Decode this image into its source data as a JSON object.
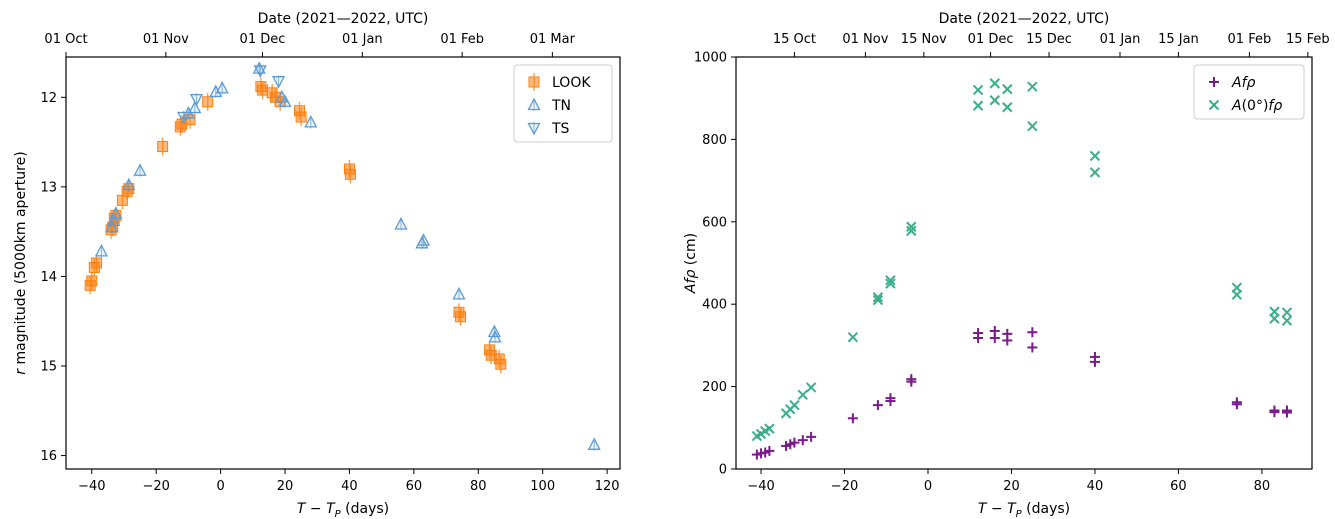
{
  "chart_data": [
    {
      "type": "scatter",
      "xlabel": "T − T_P (days)",
      "ylabel": "r magnitude (5000km aperture)",
      "top_axis_label": "Date (2021—2022, UTC)",
      "xlim": [
        -48,
        124
      ],
      "ylim": [
        16.15,
        11.55
      ],
      "y_inverted": true,
      "x_ticks": [
        -40,
        -20,
        0,
        20,
        40,
        60,
        80,
        100,
        120
      ],
      "y_ticks": [
        12,
        13,
        14,
        15,
        16
      ],
      "top_ticks": [
        {
          "label": "01 Oct",
          "x": -48
        },
        {
          "label": "01 Nov",
          "x": -17
        },
        {
          "label": "01 Dec",
          "x": 13
        },
        {
          "label": "01 Jan",
          "x": 44
        },
        {
          "label": "01 Feb",
          "x": 75
        },
        {
          "label": "01 Mar",
          "x": 103
        }
      ],
      "legend_position": "top-right",
      "series": [
        {
          "name": "LOOK",
          "marker": "square",
          "color": "#ff7f0e",
          "points": [
            {
              "x": -40.5,
              "y": 14.1
            },
            {
              "x": -40.0,
              "y": 14.05
            },
            {
              "x": -39.2,
              "y": 13.9
            },
            {
              "x": -38.5,
              "y": 13.85
            },
            {
              "x": -34.0,
              "y": 13.48
            },
            {
              "x": -33.5,
              "y": 13.45
            },
            {
              "x": -33.0,
              "y": 13.35
            },
            {
              "x": -32.5,
              "y": 13.32
            },
            {
              "x": -30.5,
              "y": 13.15
            },
            {
              "x": -29.0,
              "y": 13.05
            },
            {
              "x": -28.5,
              "y": 13.02
            },
            {
              "x": -18.0,
              "y": 12.55
            },
            {
              "x": -12.5,
              "y": 12.33
            },
            {
              "x": -12.0,
              "y": 12.3
            },
            {
              "x": -9.5,
              "y": 12.25
            },
            {
              "x": -4.0,
              "y": 12.05
            },
            {
              "x": 12.5,
              "y": 11.88
            },
            {
              "x": 13.0,
              "y": 11.92
            },
            {
              "x": 16.0,
              "y": 11.95
            },
            {
              "x": 17.0,
              "y": 12.0
            },
            {
              "x": 18.5,
              "y": 12.05
            },
            {
              "x": 24.5,
              "y": 12.15
            },
            {
              "x": 25.0,
              "y": 12.22
            },
            {
              "x": 40.0,
              "y": 12.8
            },
            {
              "x": 40.3,
              "y": 12.86
            },
            {
              "x": 74.0,
              "y": 14.4
            },
            {
              "x": 74.5,
              "y": 14.45
            },
            {
              "x": 83.5,
              "y": 14.82
            },
            {
              "x": 84.0,
              "y": 14.88
            },
            {
              "x": 86.5,
              "y": 14.92
            },
            {
              "x": 87.0,
              "y": 14.98
            }
          ]
        },
        {
          "name": "TN",
          "marker": "triangle-up",
          "color": "#5b9bd5",
          "points": [
            {
              "x": -37.0,
              "y": 13.72
            },
            {
              "x": -33.8,
              "y": 13.45
            },
            {
              "x": -33.2,
              "y": 13.38
            },
            {
              "x": -32.5,
              "y": 13.3
            },
            {
              "x": -28.5,
              "y": 12.98
            },
            {
              "x": -25.0,
              "y": 12.82
            },
            {
              "x": -10.0,
              "y": 12.18
            },
            {
              "x": -8.0,
              "y": 12.12
            },
            {
              "x": -1.5,
              "y": 11.94
            },
            {
              "x": 0.5,
              "y": 11.9
            },
            {
              "x": 12.0,
              "y": 11.68
            },
            {
              "x": 19.0,
              "y": 12.0
            },
            {
              "x": 20.0,
              "y": 12.05
            },
            {
              "x": 28.0,
              "y": 12.28
            },
            {
              "x": 56.0,
              "y": 13.42
            },
            {
              "x": 63.0,
              "y": 13.6
            },
            {
              "x": 62.5,
              "y": 13.63
            },
            {
              "x": 74.0,
              "y": 14.2
            },
            {
              "x": 85.0,
              "y": 14.62
            },
            {
              "x": 85.2,
              "y": 14.68
            },
            {
              "x": 116.0,
              "y": 15.88
            }
          ]
        },
        {
          "name": "TS",
          "marker": "triangle-down",
          "color": "#5b9bd5",
          "points": [
            {
              "x": -11.5,
              "y": 12.22
            },
            {
              "x": -7.5,
              "y": 12.02
            },
            {
              "x": 12.3,
              "y": 11.7
            },
            {
              "x": 18.0,
              "y": 11.82
            }
          ]
        }
      ]
    },
    {
      "type": "scatter",
      "xlabel": "T − T_P (days)",
      "ylabel": "Afρ (cm)",
      "top_axis_label": "Date (2021—2022, UTC)",
      "xlim": [
        -46,
        92
      ],
      "ylim": [
        0,
        1000
      ],
      "x_ticks": [
        -40,
        -20,
        0,
        20,
        40,
        60,
        80
      ],
      "y_ticks": [
        0,
        200,
        400,
        600,
        800,
        1000
      ],
      "top_ticks": [
        {
          "label": "15 Oct",
          "x": -32
        },
        {
          "label": "01 Nov",
          "x": -15
        },
        {
          "label": "15 Nov",
          "x": -1
        },
        {
          "label": "01 Dec",
          "x": 15
        },
        {
          "label": "15 Dec",
          "x": 29
        },
        {
          "label": "01 Jan",
          "x": 46
        },
        {
          "label": "15 Jan",
          "x": 60
        },
        {
          "label": "01 Feb",
          "x": 77
        },
        {
          "label": "15 Feb",
          "x": 91
        }
      ],
      "legend_position": "top-right",
      "series": [
        {
          "name": "Afρ",
          "marker": "plus",
          "color": "#7b1a8c",
          "points": [
            {
              "x": -41,
              "y": 35
            },
            {
              "x": -40,
              "y": 38
            },
            {
              "x": -39,
              "y": 40
            },
            {
              "x": -38,
              "y": 44
            },
            {
              "x": -34,
              "y": 56
            },
            {
              "x": -33,
              "y": 60
            },
            {
              "x": -32,
              "y": 64
            },
            {
              "x": -30,
              "y": 70
            },
            {
              "x": -28,
              "y": 78
            },
            {
              "x": -18,
              "y": 123
            },
            {
              "x": -12,
              "y": 155
            },
            {
              "x": -9,
              "y": 165
            },
            {
              "x": -9,
              "y": 172
            },
            {
              "x": -4,
              "y": 212
            },
            {
              "x": -4,
              "y": 218
            },
            {
              "x": 12,
              "y": 318
            },
            {
              "x": 12,
              "y": 330
            },
            {
              "x": 16,
              "y": 318
            },
            {
              "x": 16,
              "y": 335
            },
            {
              "x": 19,
              "y": 312
            },
            {
              "x": 19,
              "y": 328
            },
            {
              "x": 25,
              "y": 295
            },
            {
              "x": 25,
              "y": 332
            },
            {
              "x": 40,
              "y": 260
            },
            {
              "x": 40,
              "y": 272
            },
            {
              "x": 74,
              "y": 157
            },
            {
              "x": 74,
              "y": 162
            },
            {
              "x": 83,
              "y": 138
            },
            {
              "x": 83,
              "y": 142
            },
            {
              "x": 86,
              "y": 137
            },
            {
              "x": 86,
              "y": 142
            }
          ]
        },
        {
          "name": "A(0°)fρ",
          "marker": "x",
          "color": "#3aaf8a",
          "points": [
            {
              "x": -41,
              "y": 80
            },
            {
              "x": -40,
              "y": 85
            },
            {
              "x": -39,
              "y": 92
            },
            {
              "x": -38,
              "y": 98
            },
            {
              "x": -34,
              "y": 135
            },
            {
              "x": -33,
              "y": 145
            },
            {
              "x": -32,
              "y": 155
            },
            {
              "x": -30,
              "y": 180
            },
            {
              "x": -28,
              "y": 198
            },
            {
              "x": -18,
              "y": 320
            },
            {
              "x": -12,
              "y": 410
            },
            {
              "x": -12,
              "y": 417
            },
            {
              "x": -9,
              "y": 450
            },
            {
              "x": -9,
              "y": 458
            },
            {
              "x": -4,
              "y": 578
            },
            {
              "x": -4,
              "y": 588
            },
            {
              "x": 12,
              "y": 882
            },
            {
              "x": 12,
              "y": 920
            },
            {
              "x": 16,
              "y": 895
            },
            {
              "x": 16,
              "y": 936
            },
            {
              "x": 19,
              "y": 878
            },
            {
              "x": 19,
              "y": 922
            },
            {
              "x": 25,
              "y": 832
            },
            {
              "x": 25,
              "y": 928
            },
            {
              "x": 40,
              "y": 720
            },
            {
              "x": 40,
              "y": 760
            },
            {
              "x": 74,
              "y": 423
            },
            {
              "x": 74,
              "y": 440
            },
            {
              "x": 83,
              "y": 365
            },
            {
              "x": 83,
              "y": 382
            },
            {
              "x": 86,
              "y": 360
            },
            {
              "x": 86,
              "y": 380
            }
          ]
        }
      ]
    }
  ]
}
